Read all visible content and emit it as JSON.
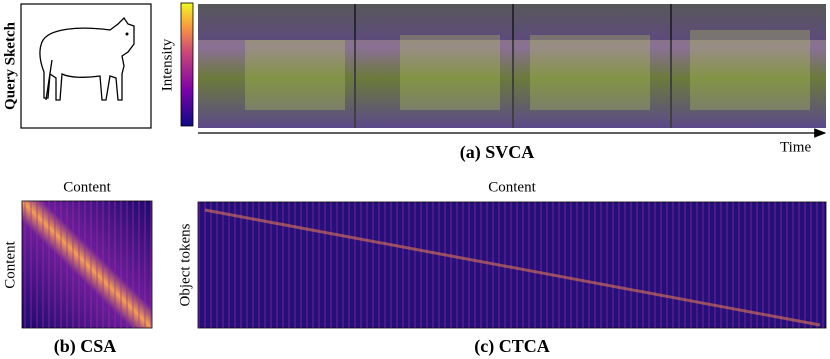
{
  "sketch": {
    "label": "Query Sketch"
  },
  "colorbar": {
    "label": "Intensity"
  },
  "svca": {
    "time_label": "Time",
    "caption": "(a) SVCA"
  },
  "csa": {
    "x_label": "Content",
    "y_label": "Content",
    "caption": "(b) CSA"
  },
  "ctca": {
    "x_label": "Content",
    "y_label": "Object tokens",
    "caption": "(c) CTCA"
  }
}
